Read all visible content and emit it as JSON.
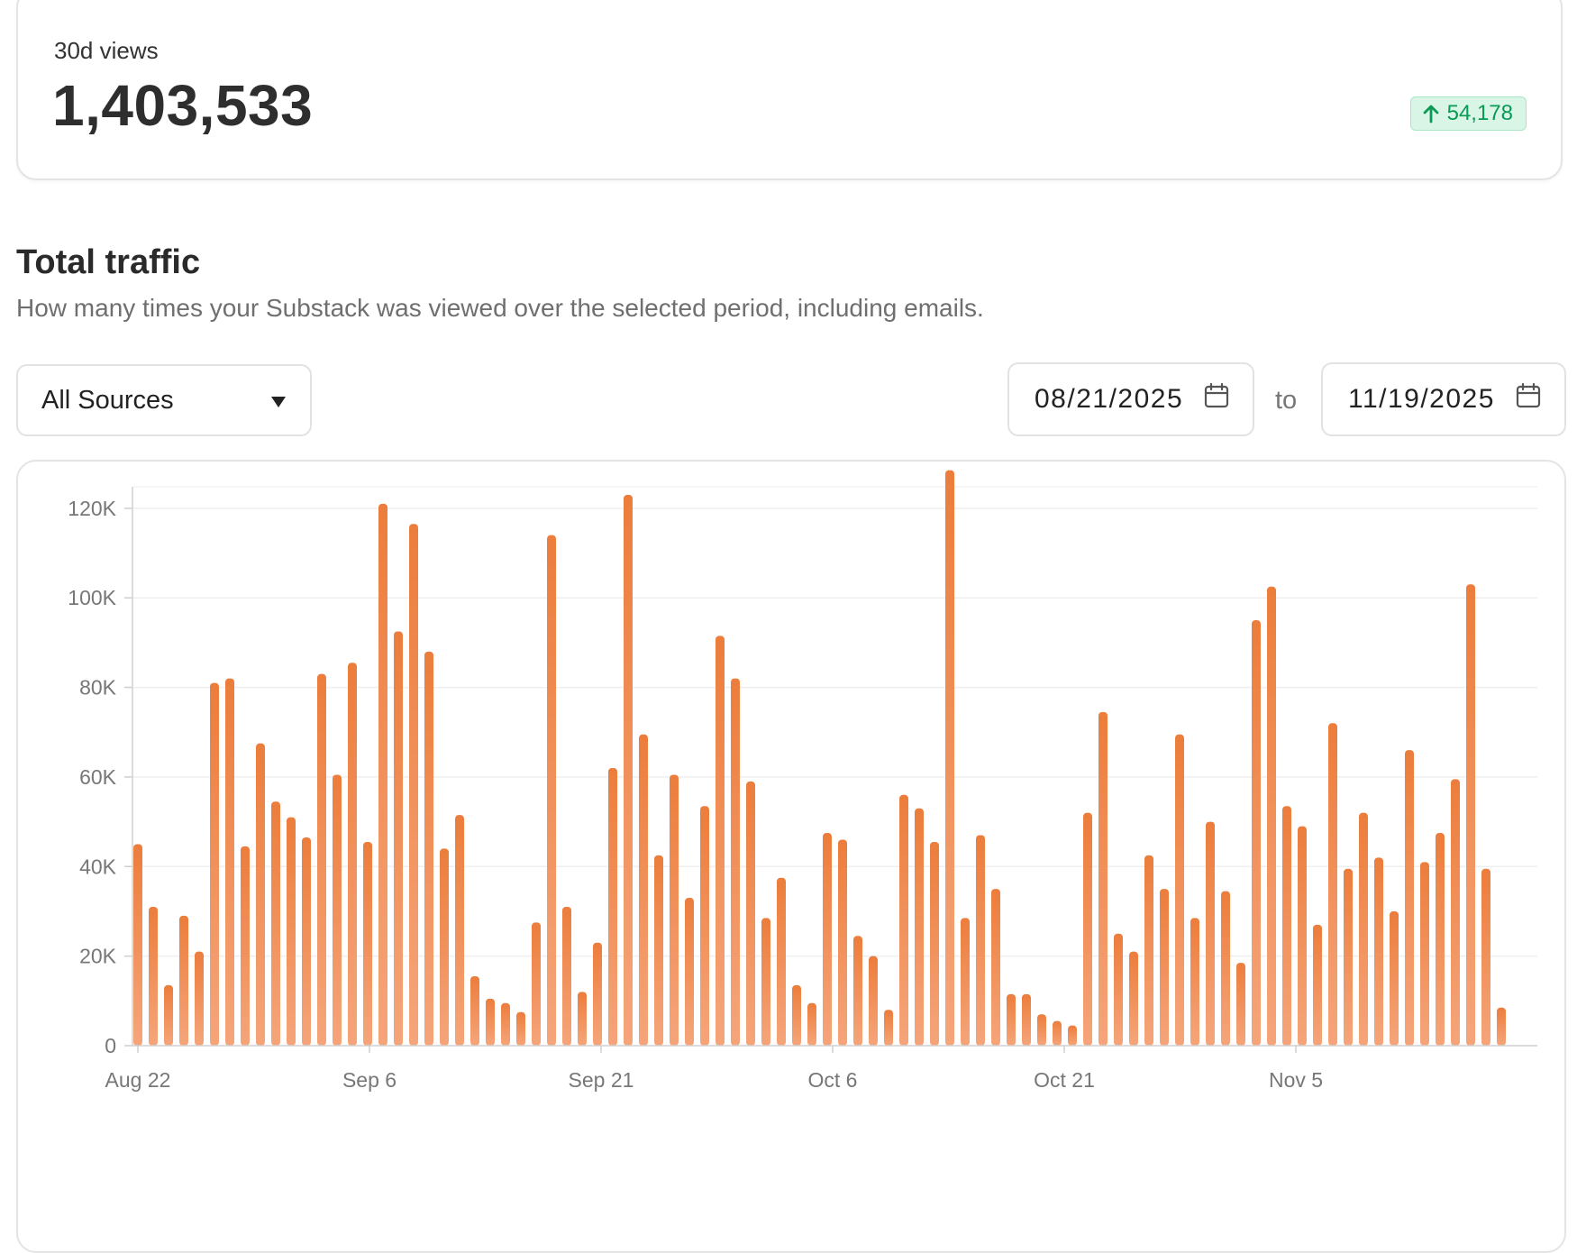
{
  "summary": {
    "views_label": "30d views",
    "views_value": "1,403,533",
    "delta_value": "54,178",
    "delta_icon": "arrow-up-icon",
    "delta_color": "#0a9a55"
  },
  "section": {
    "title": "Total traffic",
    "subtitle": "How many times your Substack was viewed over the selected period, including emails."
  },
  "filters": {
    "source_selected": "All Sources",
    "start_date": "08/21/2025",
    "to_label": "to",
    "end_date": "11/19/2025"
  },
  "chart_data": {
    "type": "bar",
    "bar_color_top": "#ec7d3c",
    "bar_color_bottom": "#f5a57a",
    "ylim": [
      0,
      130000
    ],
    "y_ticks": [
      {
        "value": 0,
        "label": "0"
      },
      {
        "value": 20000,
        "label": "20K"
      },
      {
        "value": 40000,
        "label": "40K"
      },
      {
        "value": 60000,
        "label": "60K"
      },
      {
        "value": 80000,
        "label": "80K"
      },
      {
        "value": 100000,
        "label": "100K"
      },
      {
        "value": 120000,
        "label": "120K"
      }
    ],
    "x_ticks": [
      {
        "index": 0,
        "label": "Aug 22"
      },
      {
        "index": 15,
        "label": "Sep 6"
      },
      {
        "index": 30,
        "label": "Sep 21"
      },
      {
        "index": 45,
        "label": "Oct 6"
      },
      {
        "index": 60,
        "label": "Oct 21"
      },
      {
        "index": 75,
        "label": "Nov 5"
      }
    ],
    "values": [
      45000,
      31000,
      13500,
      29000,
      21000,
      81000,
      82000,
      44500,
      67500,
      54500,
      51000,
      46500,
      83000,
      60500,
      85500,
      45500,
      121000,
      92500,
      116500,
      88000,
      44000,
      51500,
      15500,
      10500,
      9500,
      7500,
      27500,
      114000,
      31000,
      12000,
      23000,
      62000,
      123000,
      69500,
      42500,
      60500,
      33000,
      53500,
      91500,
      82000,
      59000,
      28500,
      37500,
      13500,
      9500,
      47500,
      46000,
      24500,
      20000,
      8000,
      56000,
      53000,
      45500,
      128500,
      28500,
      47000,
      35000,
      11500,
      11500,
      7000,
      5500,
      4500,
      52000,
      74500,
      25000,
      21000,
      42500,
      35000,
      69500,
      28500,
      50000,
      34500,
      18500,
      95000,
      102500,
      53500,
      49000,
      27000,
      72000,
      39500,
      52000,
      42000,
      30000,
      66000,
      41000,
      47500,
      59500,
      103000,
      39500,
      8500
    ]
  }
}
